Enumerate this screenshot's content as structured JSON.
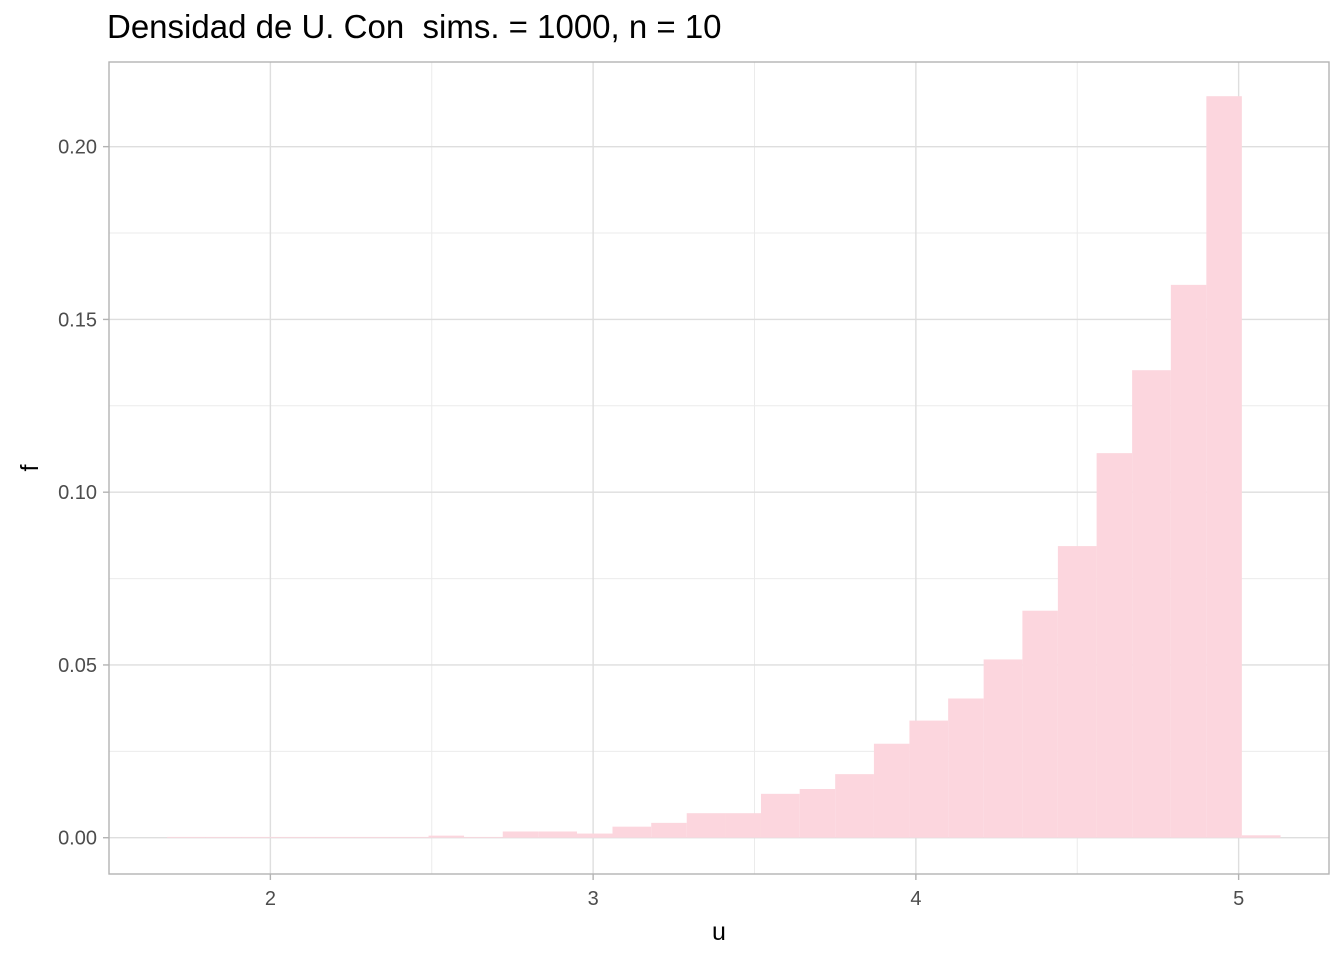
{
  "chart_data": {
    "type": "bar",
    "title": "Densidad de U. Con  sims. = 1000, n = 10",
    "xlabel": "u",
    "ylabel": "f",
    "xlim": [
      1.5,
      5.28
    ],
    "ylim": [
      -0.0105,
      0.2245
    ],
    "x_ticks": [
      2,
      3,
      4,
      5
    ],
    "x_tick_labels": [
      "2",
      "3",
      "4",
      "5"
    ],
    "y_ticks": [
      0.0,
      0.05,
      0.1,
      0.15,
      0.2
    ],
    "y_tick_labels": [
      "0.00",
      "0.05",
      "0.10",
      "0.15",
      "0.20"
    ],
    "grid": true,
    "bar_color": "#fcd6de",
    "bins": [
      {
        "x0": 1.68,
        "x1": 1.8,
        "y": 0.0001
      },
      {
        "x0": 1.8,
        "x1": 1.91,
        "y": 0.0
      },
      {
        "x0": 1.91,
        "x1": 2.03,
        "y": 0.0
      },
      {
        "x0": 2.03,
        "x1": 2.14,
        "y": 0.0
      },
      {
        "x0": 2.14,
        "x1": 2.26,
        "y": 0.0002
      },
      {
        "x0": 2.26,
        "x1": 2.37,
        "y": 0.0002
      },
      {
        "x0": 2.37,
        "x1": 2.49,
        "y": 0.0
      },
      {
        "x0": 2.49,
        "x1": 2.6,
        "y": 0.0006
      },
      {
        "x0": 2.6,
        "x1": 2.72,
        "y": 0.0002
      },
      {
        "x0": 2.72,
        "x1": 2.83,
        "y": 0.0018
      },
      {
        "x0": 2.83,
        "x1": 2.95,
        "y": 0.0018
      },
      {
        "x0": 2.95,
        "x1": 3.06,
        "y": 0.0012
      },
      {
        "x0": 3.06,
        "x1": 3.18,
        "y": 0.0032
      },
      {
        "x0": 3.18,
        "x1": 3.29,
        "y": 0.0043
      },
      {
        "x0": 3.29,
        "x1": 3.41,
        "y": 0.0071
      },
      {
        "x0": 3.41,
        "x1": 3.52,
        "y": 0.0071
      },
      {
        "x0": 3.52,
        "x1": 3.64,
        "y": 0.0127
      },
      {
        "x0": 3.64,
        "x1": 3.75,
        "y": 0.0141
      },
      {
        "x0": 3.75,
        "x1": 3.87,
        "y": 0.0184
      },
      {
        "x0": 3.87,
        "x1": 3.98,
        "y": 0.0272
      },
      {
        "x0": 3.98,
        "x1": 4.1,
        "y": 0.0339
      },
      {
        "x0": 4.1,
        "x1": 4.21,
        "y": 0.0403
      },
      {
        "x0": 4.21,
        "x1": 4.33,
        "y": 0.0516
      },
      {
        "x0": 4.33,
        "x1": 4.44,
        "y": 0.0657
      },
      {
        "x0": 4.44,
        "x1": 4.56,
        "y": 0.0844
      },
      {
        "x0": 4.56,
        "x1": 4.67,
        "y": 0.1113
      },
      {
        "x0": 4.67,
        "x1": 4.79,
        "y": 0.1353
      },
      {
        "x0": 4.79,
        "x1": 4.9,
        "y": 0.16
      },
      {
        "x0": 4.9,
        "x1": 5.01,
        "y": 0.2146
      },
      {
        "x0": 5.01,
        "x1": 5.13,
        "y": 0.0007
      }
    ]
  }
}
